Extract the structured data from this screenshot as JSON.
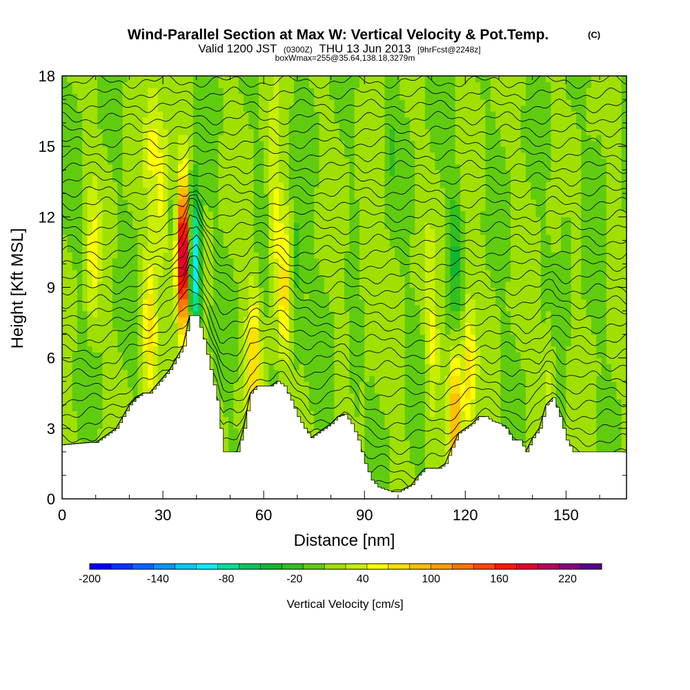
{
  "chart_data": {
    "type": "heatmap",
    "title": "Wind-Parallel Section at Max W: Vertical Velocity & Pot.Temp.",
    "title_mark": "(C)",
    "subtitle": {
      "part1": "Valid 1200 JST",
      "part2": "(0300Z)",
      "part3": "THU 13 Jun 2013",
      "part4": "[9hrFcst@2248z]"
    },
    "subtitle2": "boxWmax=255@35.64,138.18,3279m",
    "xlabel": "Distance [nm]",
    "ylabel": "Height [Kft MSL]",
    "xlim": [
      0,
      168
    ],
    "ylim": [
      0,
      18
    ],
    "x_ticks": [
      0,
      30,
      60,
      90,
      120,
      150
    ],
    "y_ticks": [
      0,
      3,
      6,
      9,
      12,
      15,
      18
    ],
    "colorbar": {
      "label": "Vertical Velocity [cm/s]",
      "range": [
        -200,
        250
      ],
      "step": 20,
      "tick_labels": [
        "-200",
        "-140",
        "-80",
        "-20",
        "40",
        "100",
        "160",
        "220"
      ],
      "tick_values": [
        -200,
        -140,
        -80,
        -20,
        40,
        100,
        160,
        220
      ],
      "colors": [
        "#0000ff",
        "#0033ff",
        "#0066ff",
        "#0099ff",
        "#00ccff",
        "#00eeff",
        "#00e0a0",
        "#00c860",
        "#10b830",
        "#30c020",
        "#60cc10",
        "#a0e000",
        "#c8ee00",
        "#ffff00",
        "#ffe000",
        "#ffc000",
        "#ffa000",
        "#ff7800",
        "#ff4800",
        "#ff1800",
        "#e8002a",
        "#b80060",
        "#8c0080",
        "#5c0090"
      ]
    },
    "terrain_kft": [
      [
        0,
        2.3
      ],
      [
        8,
        2.4
      ],
      [
        10,
        2.4
      ],
      [
        13,
        2.7
      ],
      [
        16,
        3.0
      ],
      [
        18,
        3.5
      ],
      [
        20,
        4.0
      ],
      [
        22,
        4.3
      ],
      [
        24,
        4.5
      ],
      [
        26,
        4.5
      ],
      [
        29,
        5.0
      ],
      [
        32,
        5.5
      ],
      [
        34,
        6.0
      ],
      [
        36,
        6.5
      ],
      [
        38,
        7.8
      ],
      [
        40,
        7.8
      ],
      [
        42,
        6.8
      ],
      [
        44,
        5.5
      ],
      [
        46,
        4.2
      ],
      [
        47,
        3.0
      ],
      [
        48,
        2.0
      ],
      [
        52,
        2.0
      ],
      [
        54,
        3.0
      ],
      [
        56,
        4.5
      ],
      [
        58,
        4.8
      ],
      [
        62,
        4.8
      ],
      [
        64,
        5.0
      ],
      [
        66,
        4.8
      ],
      [
        68,
        4.2
      ],
      [
        70,
        3.5
      ],
      [
        72,
        3.0
      ],
      [
        74,
        2.6
      ],
      [
        76,
        2.8
      ],
      [
        78,
        3.0
      ],
      [
        80,
        3.2
      ],
      [
        82,
        3.5
      ],
      [
        84,
        3.6
      ],
      [
        86,
        3.2
      ],
      [
        88,
        2.5
      ],
      [
        90,
        1.5
      ],
      [
        92,
        0.8
      ],
      [
        94,
        0.5
      ],
      [
        98,
        0.3
      ],
      [
        100,
        0.3
      ],
      [
        104,
        0.6
      ],
      [
        106,
        1.0
      ],
      [
        108,
        1.3
      ],
      [
        110,
        1.3
      ],
      [
        112,
        1.3
      ],
      [
        114,
        1.5
      ],
      [
        116,
        2.2
      ],
      [
        118,
        2.8
      ],
      [
        120,
        3.0
      ],
      [
        122,
        3.2
      ],
      [
        124,
        3.5
      ],
      [
        126,
        3.5
      ],
      [
        128,
        3.3
      ],
      [
        130,
        3.2
      ],
      [
        132,
        3.0
      ],
      [
        134,
        2.5
      ],
      [
        136,
        2.5
      ],
      [
        138,
        2.0
      ],
      [
        140,
        2.6
      ],
      [
        142,
        3.0
      ],
      [
        144,
        4.0
      ],
      [
        146,
        4.3
      ],
      [
        148,
        3.5
      ],
      [
        150,
        2.5
      ],
      [
        152,
        2.0
      ],
      [
        168,
        2.0
      ]
    ],
    "features": [
      {
        "x": 36,
        "y": 10.3,
        "w": 230
      },
      {
        "x": 39.5,
        "y": 10.0,
        "w": -140
      },
      {
        "x": 30,
        "y": 13.0,
        "w": 60
      },
      {
        "x": 26,
        "y": 7.5,
        "w": 60
      },
      {
        "x": 27,
        "y": 15.0,
        "w": 40
      },
      {
        "x": 9,
        "y": 10.0,
        "w": 40
      },
      {
        "x": 63,
        "y": 12.0,
        "w": 50
      },
      {
        "x": 66,
        "y": 9.0,
        "w": 60
      },
      {
        "x": 70,
        "y": 9.5,
        "w": -40
      },
      {
        "x": 57,
        "y": 6.0,
        "w": 70
      },
      {
        "x": 87,
        "y": 5.0,
        "w": -20
      },
      {
        "x": 117,
        "y": 10.5,
        "w": -40
      },
      {
        "x": 121,
        "y": 5.5,
        "w": 70
      },
      {
        "x": 117,
        "y": 3.5,
        "w": 100
      },
      {
        "x": 150,
        "y": 11.0,
        "w": -20
      },
      {
        "x": 160,
        "y": 14.0,
        "w": -15
      },
      {
        "x": 110,
        "y": 6.5,
        "w": 40
      },
      {
        "x": 145,
        "y": 5.0,
        "w": 30
      },
      {
        "x": 98,
        "y": 15.5,
        "w": -15
      },
      {
        "x": 90,
        "y": 11.0,
        "w": 30
      }
    ],
    "isentropes_count": 34
  }
}
